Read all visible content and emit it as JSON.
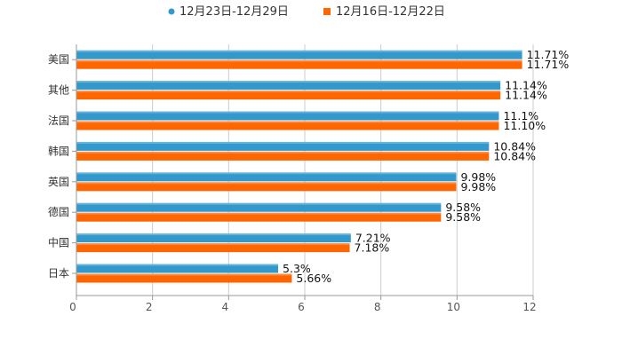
{
  "chart_data": {
    "type": "bar",
    "orientation": "horizontal",
    "title": "",
    "xlabel": "",
    "ylabel": "",
    "xlim": [
      0,
      12
    ],
    "x_ticks": [
      "0",
      "2",
      "4",
      "6",
      "8",
      "10",
      "12"
    ],
    "categories": [
      "美国",
      "其他",
      "法国",
      "韩国",
      "英国",
      "德国",
      "中国",
      "日本"
    ],
    "series": [
      {
        "name": "12月23日-12月29日",
        "color": "#3399cc",
        "values": [
          11.71,
          11.14,
          11.1,
          10.84,
          9.98,
          9.58,
          7.21,
          5.3
        ],
        "labels": [
          "11.71%",
          "11.14%",
          "11.1%",
          "10.84%",
          "9.98%",
          "9.58%",
          "7.21%",
          "5.3%"
        ]
      },
      {
        "name": "12月16日-12月22日",
        "color": "#ff6600",
        "values": [
          11.71,
          11.14,
          11.1,
          10.84,
          9.98,
          9.58,
          7.18,
          5.66
        ],
        "labels": [
          "11.71%",
          "11.14%",
          "11.10%",
          "10.84%",
          "9.98%",
          "9.58%",
          "7.18%",
          "5.66%"
        ]
      }
    ],
    "legend_position": "top",
    "grid": true
  }
}
